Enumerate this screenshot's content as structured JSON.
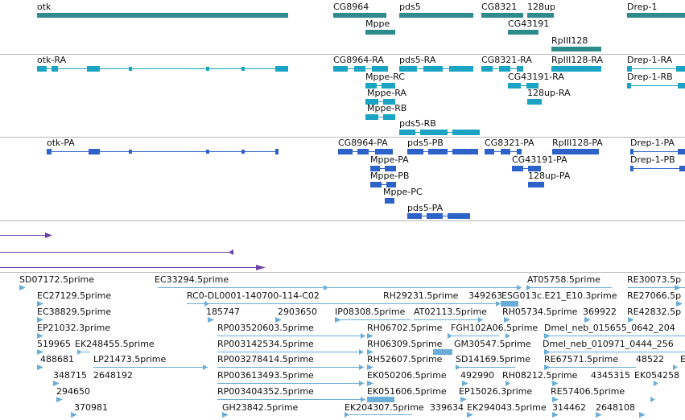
{
  "colors": {
    "gene": "#2e8b8b",
    "mrna": "#1aa3c2",
    "protein": "#2d63c8",
    "purple": "#6b3fa8",
    "est": "#6aaed8",
    "divider": "#b8b8b8"
  },
  "genes": [
    {
      "label": "otk"
    },
    {
      "label": "CG8964"
    },
    {
      "label": "pds5"
    },
    {
      "label": "CG8321"
    },
    {
      "label": "128up"
    },
    {
      "label": "Drep-1"
    },
    {
      "label": "Mppe"
    },
    {
      "label": "CG43191"
    },
    {
      "label": "RpIII128"
    }
  ],
  "transcripts": [
    {
      "label": "otk-RA"
    },
    {
      "label": "CG8964-RA"
    },
    {
      "label": "pds5-RA"
    },
    {
      "label": "CG8321-RA"
    },
    {
      "label": "RpIII128-RA"
    },
    {
      "label": "Drep-1-RA"
    },
    {
      "label": "Mppe-RC"
    },
    {
      "label": "CG43191-RA"
    },
    {
      "label": "Drep-1-RB"
    },
    {
      "label": "Mppe-RA"
    },
    {
      "label": "128up-RA"
    },
    {
      "label": "Mppe-RB"
    },
    {
      "label": "pds5-RB"
    }
  ],
  "proteins": [
    {
      "label": "otk-PA"
    },
    {
      "label": "CG8964-PA"
    },
    {
      "label": "pds5-PB"
    },
    {
      "label": "CG8321-PA"
    },
    {
      "label": "RpIII128-PA"
    },
    {
      "label": "Drep-1-PA"
    },
    {
      "label": "CG43191-PA"
    },
    {
      "label": "Mppe-PA"
    },
    {
      "label": "Drep-1-PB"
    },
    {
      "label": "Mppe-PB"
    },
    {
      "label": "128up-PA"
    },
    {
      "label": "Mppe-PC"
    },
    {
      "label": "pds5-PA"
    }
  ],
  "ests": [
    {
      "label": "SD07172.5prime"
    },
    {
      "label": "EC33294.5prime"
    },
    {
      "label": "AT05758.5prime"
    },
    {
      "label": "RE30073.5p"
    },
    {
      "label": "EC27129.5prime"
    },
    {
      "label": "RC0-DL0001-140700-114-C02"
    },
    {
      "label": "RH29231.5prime"
    },
    {
      "label": "349263"
    },
    {
      "label": "ESG01"
    },
    {
      "label": "3c.E21_E10.3prime"
    },
    {
      "label": "RE27066.5p"
    },
    {
      "label": "EC38829.5prime"
    },
    {
      "label": "185747"
    },
    {
      "label": "2903650"
    },
    {
      "label": "IP08308.5prime"
    },
    {
      "label": "AT02113.5prime"
    },
    {
      "label": "RH05734.5prime"
    },
    {
      "label": "369922"
    },
    {
      "label": "RE42832.5p"
    },
    {
      "label": "EP21032.3prime"
    },
    {
      "label": "RP003520603.5prime"
    },
    {
      "label": "RH06702.5prime"
    },
    {
      "label": "FGH102A06.5prime"
    },
    {
      "label": "Dmel_neb_015655_0642_204"
    },
    {
      "label": "519965"
    },
    {
      "label": "EK248455.5prime"
    },
    {
      "label": "RP003142534.5prime"
    },
    {
      "label": "RH06309.5prime"
    },
    {
      "label": "GM30547.5prime"
    },
    {
      "label": "Dmel_neb_010971_0444_256"
    },
    {
      "label": "488681"
    },
    {
      "label": "LP21473.5prime"
    },
    {
      "label": "RP003278414.5prime"
    },
    {
      "label": "RH52607.5prime"
    },
    {
      "label": "SD14169.5prime"
    },
    {
      "label": "RE67571.5prime"
    },
    {
      "label": "48522"
    },
    {
      "label": "E"
    },
    {
      "label": "348715"
    },
    {
      "label": "2648192"
    },
    {
      "label": "RP003613493.5prime"
    },
    {
      "label": "EK050206.5prime"
    },
    {
      "label": "492990"
    },
    {
      "label": "RH08212.5prime"
    },
    {
      "label": "4345315"
    },
    {
      "label": "EK054258"
    },
    {
      "label": "294650"
    },
    {
      "label": "RP003404352.5prime"
    },
    {
      "label": "EK051606.5prime"
    },
    {
      "label": "EP15026.3prime"
    },
    {
      "label": "RE57406.5prime"
    },
    {
      "label": "370981"
    },
    {
      "label": "GH23842.5prime"
    },
    {
      "label": "EK204307.5prime"
    },
    {
      "label": "339634"
    },
    {
      "label": "EK294043.5prime"
    },
    {
      "label": "314462"
    },
    {
      "label": "2648108"
    }
  ]
}
